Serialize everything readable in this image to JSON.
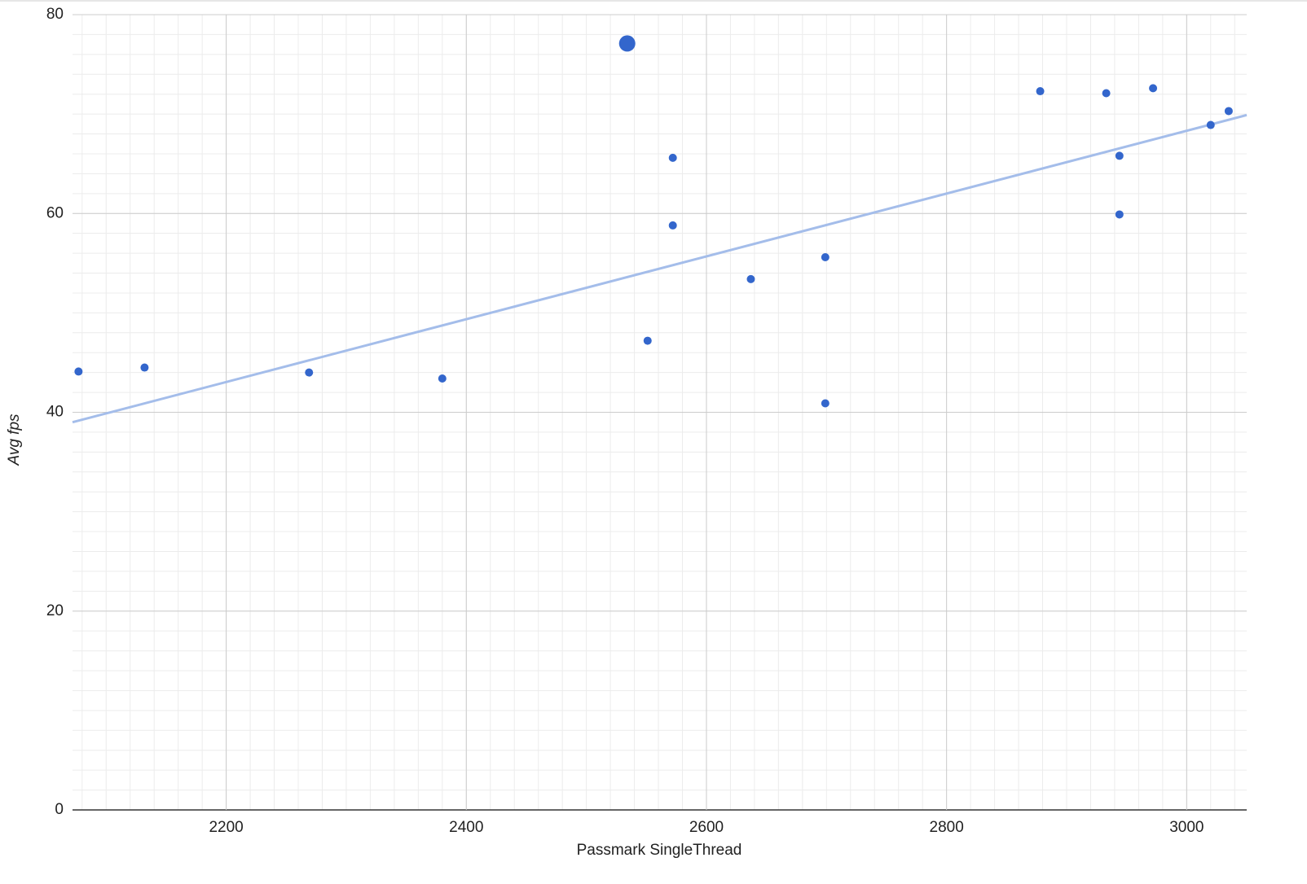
{
  "chart_data": {
    "type": "scatter",
    "x_label": "Passmark SingleThread",
    "y_label": "Avg fps",
    "series": [
      {
        "color": "#3366cc",
        "x": [
          2077,
          2132,
          2269,
          2380,
          2534,
          2551,
          2572,
          2572,
          2637,
          2699,
          2699,
          2878,
          2933,
          2944,
          2944,
          2972,
          3020,
          3035
        ],
        "values": [
          44.1,
          44.5,
          44.0,
          43.4,
          77.1,
          47.2,
          65.6,
          58.8,
          53.4,
          55.6,
          40.9,
          72.3,
          72.1,
          65.8,
          59.9,
          72.6,
          68.9,
          70.3
        ]
      }
    ],
    "selected": 4,
    "trendline": {
      "color": "#a4bdea",
      "x": [
        2072,
        3050
      ],
      "values": [
        39.0,
        69.9
      ]
    },
    "xlim": [
      2072,
      3050
    ],
    "xticks": [
      2200,
      2400,
      2600,
      2800,
      3000
    ],
    "ylim": [
      0,
      80
    ],
    "yticks": [
      0,
      20,
      40,
      60,
      80
    ],
    "grid": true,
    "minor_gridlines": 9
  }
}
